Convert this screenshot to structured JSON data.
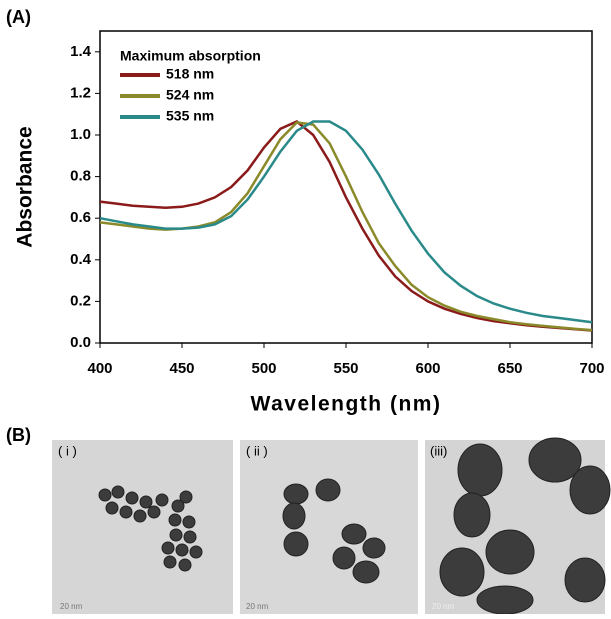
{
  "chart_data": {
    "type": "line",
    "x_label": "Wavelength (nm)",
    "y_label": "Absorbance",
    "legend_title": "Maximum absorption",
    "legend": "upper left",
    "grid": false,
    "xlim": [
      400,
      700
    ],
    "xticks": [
      400,
      450,
      500,
      550,
      600,
      650,
      700
    ],
    "ylim": [
      0,
      1.5
    ],
    "yticks": [
      {
        "value": 0,
        "label": "0.0"
      },
      0.2,
      0.4,
      0.6,
      0.8,
      {
        "value": 1,
        "label": "1.0"
      },
      1.2,
      1.4
    ],
    "x": [
      400,
      410,
      420,
      430,
      440,
      450,
      460,
      470,
      480,
      490,
      500,
      510,
      520,
      530,
      540,
      550,
      560,
      570,
      580,
      590,
      600,
      610,
      620,
      630,
      640,
      650,
      660,
      670,
      680,
      690,
      700
    ],
    "series": [
      {
        "name": "518 nm",
        "color": "#8b1a1a",
        "values": [
          0.68,
          0.67,
          0.66,
          0.655,
          0.65,
          0.655,
          0.67,
          0.7,
          0.75,
          0.83,
          0.94,
          1.03,
          1.065,
          1.0,
          0.87,
          0.7,
          0.55,
          0.42,
          0.32,
          0.25,
          0.2,
          0.165,
          0.14,
          0.12,
          0.105,
          0.095,
          0.085,
          0.078,
          0.072,
          0.066,
          0.06
        ]
      },
      {
        "name": "524 nm",
        "color": "#8a8a2a",
        "values": [
          0.58,
          0.57,
          0.56,
          0.55,
          0.545,
          0.55,
          0.56,
          0.58,
          0.63,
          0.72,
          0.85,
          0.98,
          1.06,
          1.05,
          0.96,
          0.8,
          0.63,
          0.48,
          0.37,
          0.28,
          0.22,
          0.18,
          0.15,
          0.13,
          0.115,
          0.1,
          0.09,
          0.082,
          0.075,
          0.068,
          0.062
        ]
      },
      {
        "name": "535 nm",
        "color": "#2a8a8a",
        "values": [
          0.6,
          0.585,
          0.57,
          0.56,
          0.55,
          0.55,
          0.555,
          0.57,
          0.61,
          0.69,
          0.8,
          0.92,
          1.02,
          1.065,
          1.065,
          1.02,
          0.93,
          0.81,
          0.67,
          0.54,
          0.43,
          0.34,
          0.275,
          0.225,
          0.19,
          0.165,
          0.145,
          0.13,
          0.12,
          0.11,
          0.1
        ]
      }
    ]
  },
  "figure_labels": [
    "(A)",
    "(B)"
  ],
  "panels": [
    {
      "label": "( i )",
      "scale": "20 nm"
    },
    {
      "label": "( ii )",
      "scale": "20 nm"
    },
    {
      "label": "(iii)",
      "scale": "20 nm"
    }
  ]
}
